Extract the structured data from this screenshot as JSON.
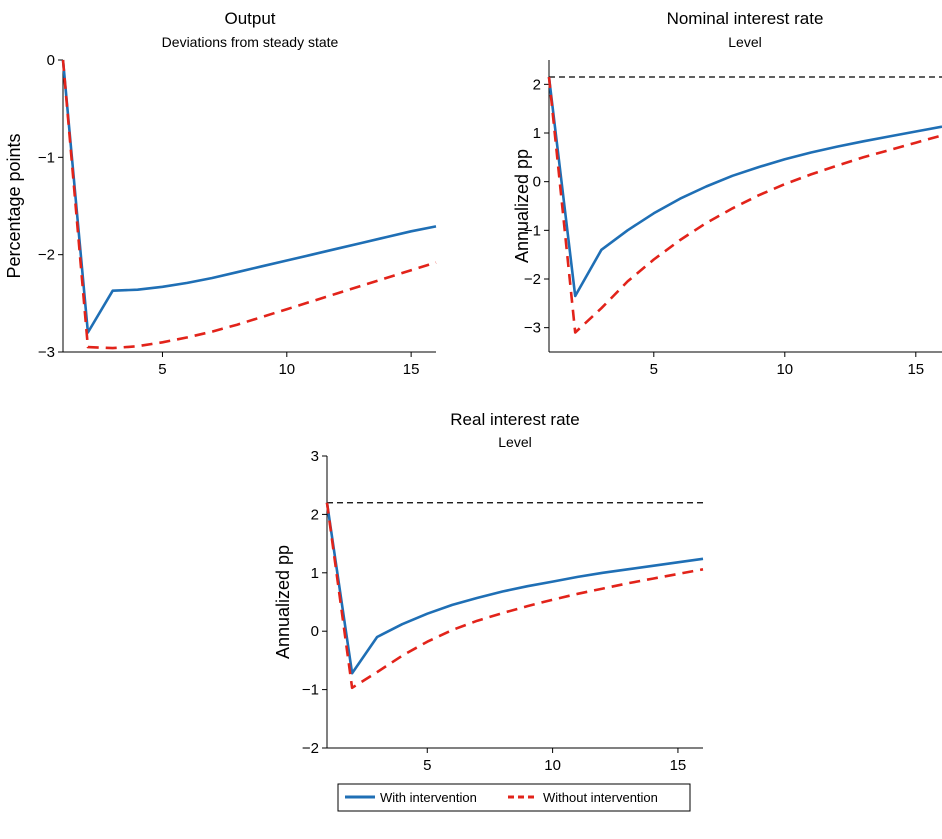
{
  "chart_data": [
    {
      "type": "line",
      "title": "Output",
      "subtitle": "Deviations from steady state",
      "ylabel": "Percentage points",
      "xlim": [
        1,
        16
      ],
      "ylim": [
        -3,
        0
      ],
      "xticks": [
        5,
        10,
        15
      ],
      "yticks": [
        0,
        -1,
        -2,
        -3
      ],
      "ytick_labels": [
        "0",
        "−1",
        "−2",
        "−3"
      ],
      "reference_line": null,
      "series": [
        {
          "name": "With intervention",
          "x": [
            1,
            2,
            3,
            4,
            5,
            6,
            7,
            8,
            9,
            10,
            11,
            12,
            13,
            14,
            15,
            16
          ],
          "y": [
            0,
            -2.8,
            -2.37,
            -2.36,
            -2.33,
            -2.29,
            -2.24,
            -2.18,
            -2.12,
            -2.06,
            -2.0,
            -1.94,
            -1.88,
            -1.82,
            -1.76,
            -1.71
          ]
        },
        {
          "name": "Without intervention",
          "x": [
            1,
            2,
            3,
            4,
            5,
            6,
            7,
            8,
            9,
            10,
            11,
            12,
            13,
            14,
            15,
            16
          ],
          "y": [
            0,
            -2.95,
            -2.96,
            -2.94,
            -2.9,
            -2.85,
            -2.79,
            -2.72,
            -2.64,
            -2.56,
            -2.48,
            -2.4,
            -2.32,
            -2.24,
            -2.16,
            -2.08
          ]
        }
      ]
    },
    {
      "type": "line",
      "title": "Nominal interest rate",
      "subtitle": "Level",
      "ylabel": "Annualized pp",
      "xlim": [
        1,
        16
      ],
      "ylim": [
        -3.5,
        2.5
      ],
      "xticks": [
        5,
        10,
        15
      ],
      "yticks": [
        2,
        1,
        0,
        -1,
        -2,
        -3
      ],
      "ytick_labels": [
        "2",
        "1",
        "0",
        "−1",
        "−2",
        "−3"
      ],
      "reference_line": 2.15,
      "series": [
        {
          "name": "With intervention",
          "x": [
            1,
            2,
            3,
            4,
            5,
            6,
            7,
            8,
            9,
            10,
            11,
            12,
            13,
            14,
            15,
            16
          ],
          "y": [
            2.15,
            -2.35,
            -1.4,
            -1.0,
            -0.65,
            -0.35,
            -0.1,
            0.12,
            0.3,
            0.46,
            0.6,
            0.72,
            0.83,
            0.93,
            1.03,
            1.13
          ]
        },
        {
          "name": "Without intervention",
          "x": [
            1,
            2,
            3,
            4,
            5,
            6,
            7,
            8,
            9,
            10,
            11,
            12,
            13,
            14,
            15,
            16
          ],
          "y": [
            2.15,
            -3.1,
            -2.6,
            -2.05,
            -1.6,
            -1.2,
            -0.85,
            -0.55,
            -0.28,
            -0.05,
            0.15,
            0.33,
            0.5,
            0.65,
            0.8,
            0.95
          ]
        }
      ]
    },
    {
      "type": "line",
      "title": "Real interest rate",
      "subtitle": "Level",
      "ylabel": "Annualized pp",
      "xlim": [
        1,
        16
      ],
      "ylim": [
        -2,
        3
      ],
      "xticks": [
        5,
        10,
        15
      ],
      "yticks": [
        3,
        2,
        1,
        0,
        -1,
        -2
      ],
      "ytick_labels": [
        "3",
        "2",
        "1",
        "0",
        "−1",
        "−2"
      ],
      "reference_line": 2.2,
      "series": [
        {
          "name": "With intervention",
          "x": [
            1,
            2,
            3,
            4,
            5,
            6,
            7,
            8,
            9,
            10,
            11,
            12,
            13,
            14,
            15,
            16
          ],
          "y": [
            2.2,
            -0.72,
            -0.1,
            0.12,
            0.3,
            0.45,
            0.57,
            0.68,
            0.77,
            0.85,
            0.93,
            1.0,
            1.06,
            1.12,
            1.18,
            1.24
          ]
        },
        {
          "name": "Without intervention",
          "x": [
            1,
            2,
            3,
            4,
            5,
            6,
            7,
            8,
            9,
            10,
            11,
            12,
            13,
            14,
            15,
            16
          ],
          "y": [
            2.2,
            -0.97,
            -0.7,
            -0.42,
            -0.18,
            0.02,
            0.18,
            0.31,
            0.43,
            0.54,
            0.64,
            0.73,
            0.82,
            0.9,
            0.98,
            1.06
          ]
        }
      ]
    }
  ],
  "legend": {
    "entries": [
      {
        "label": "With intervention",
        "color": "#1f6fb5",
        "dash": "solid"
      },
      {
        "label": "Without intervention",
        "color": "#e2231a",
        "dash": "dashed"
      }
    ]
  },
  "colors": {
    "with": "#1f6fb5",
    "without": "#e2231a",
    "reference": "#000000"
  }
}
